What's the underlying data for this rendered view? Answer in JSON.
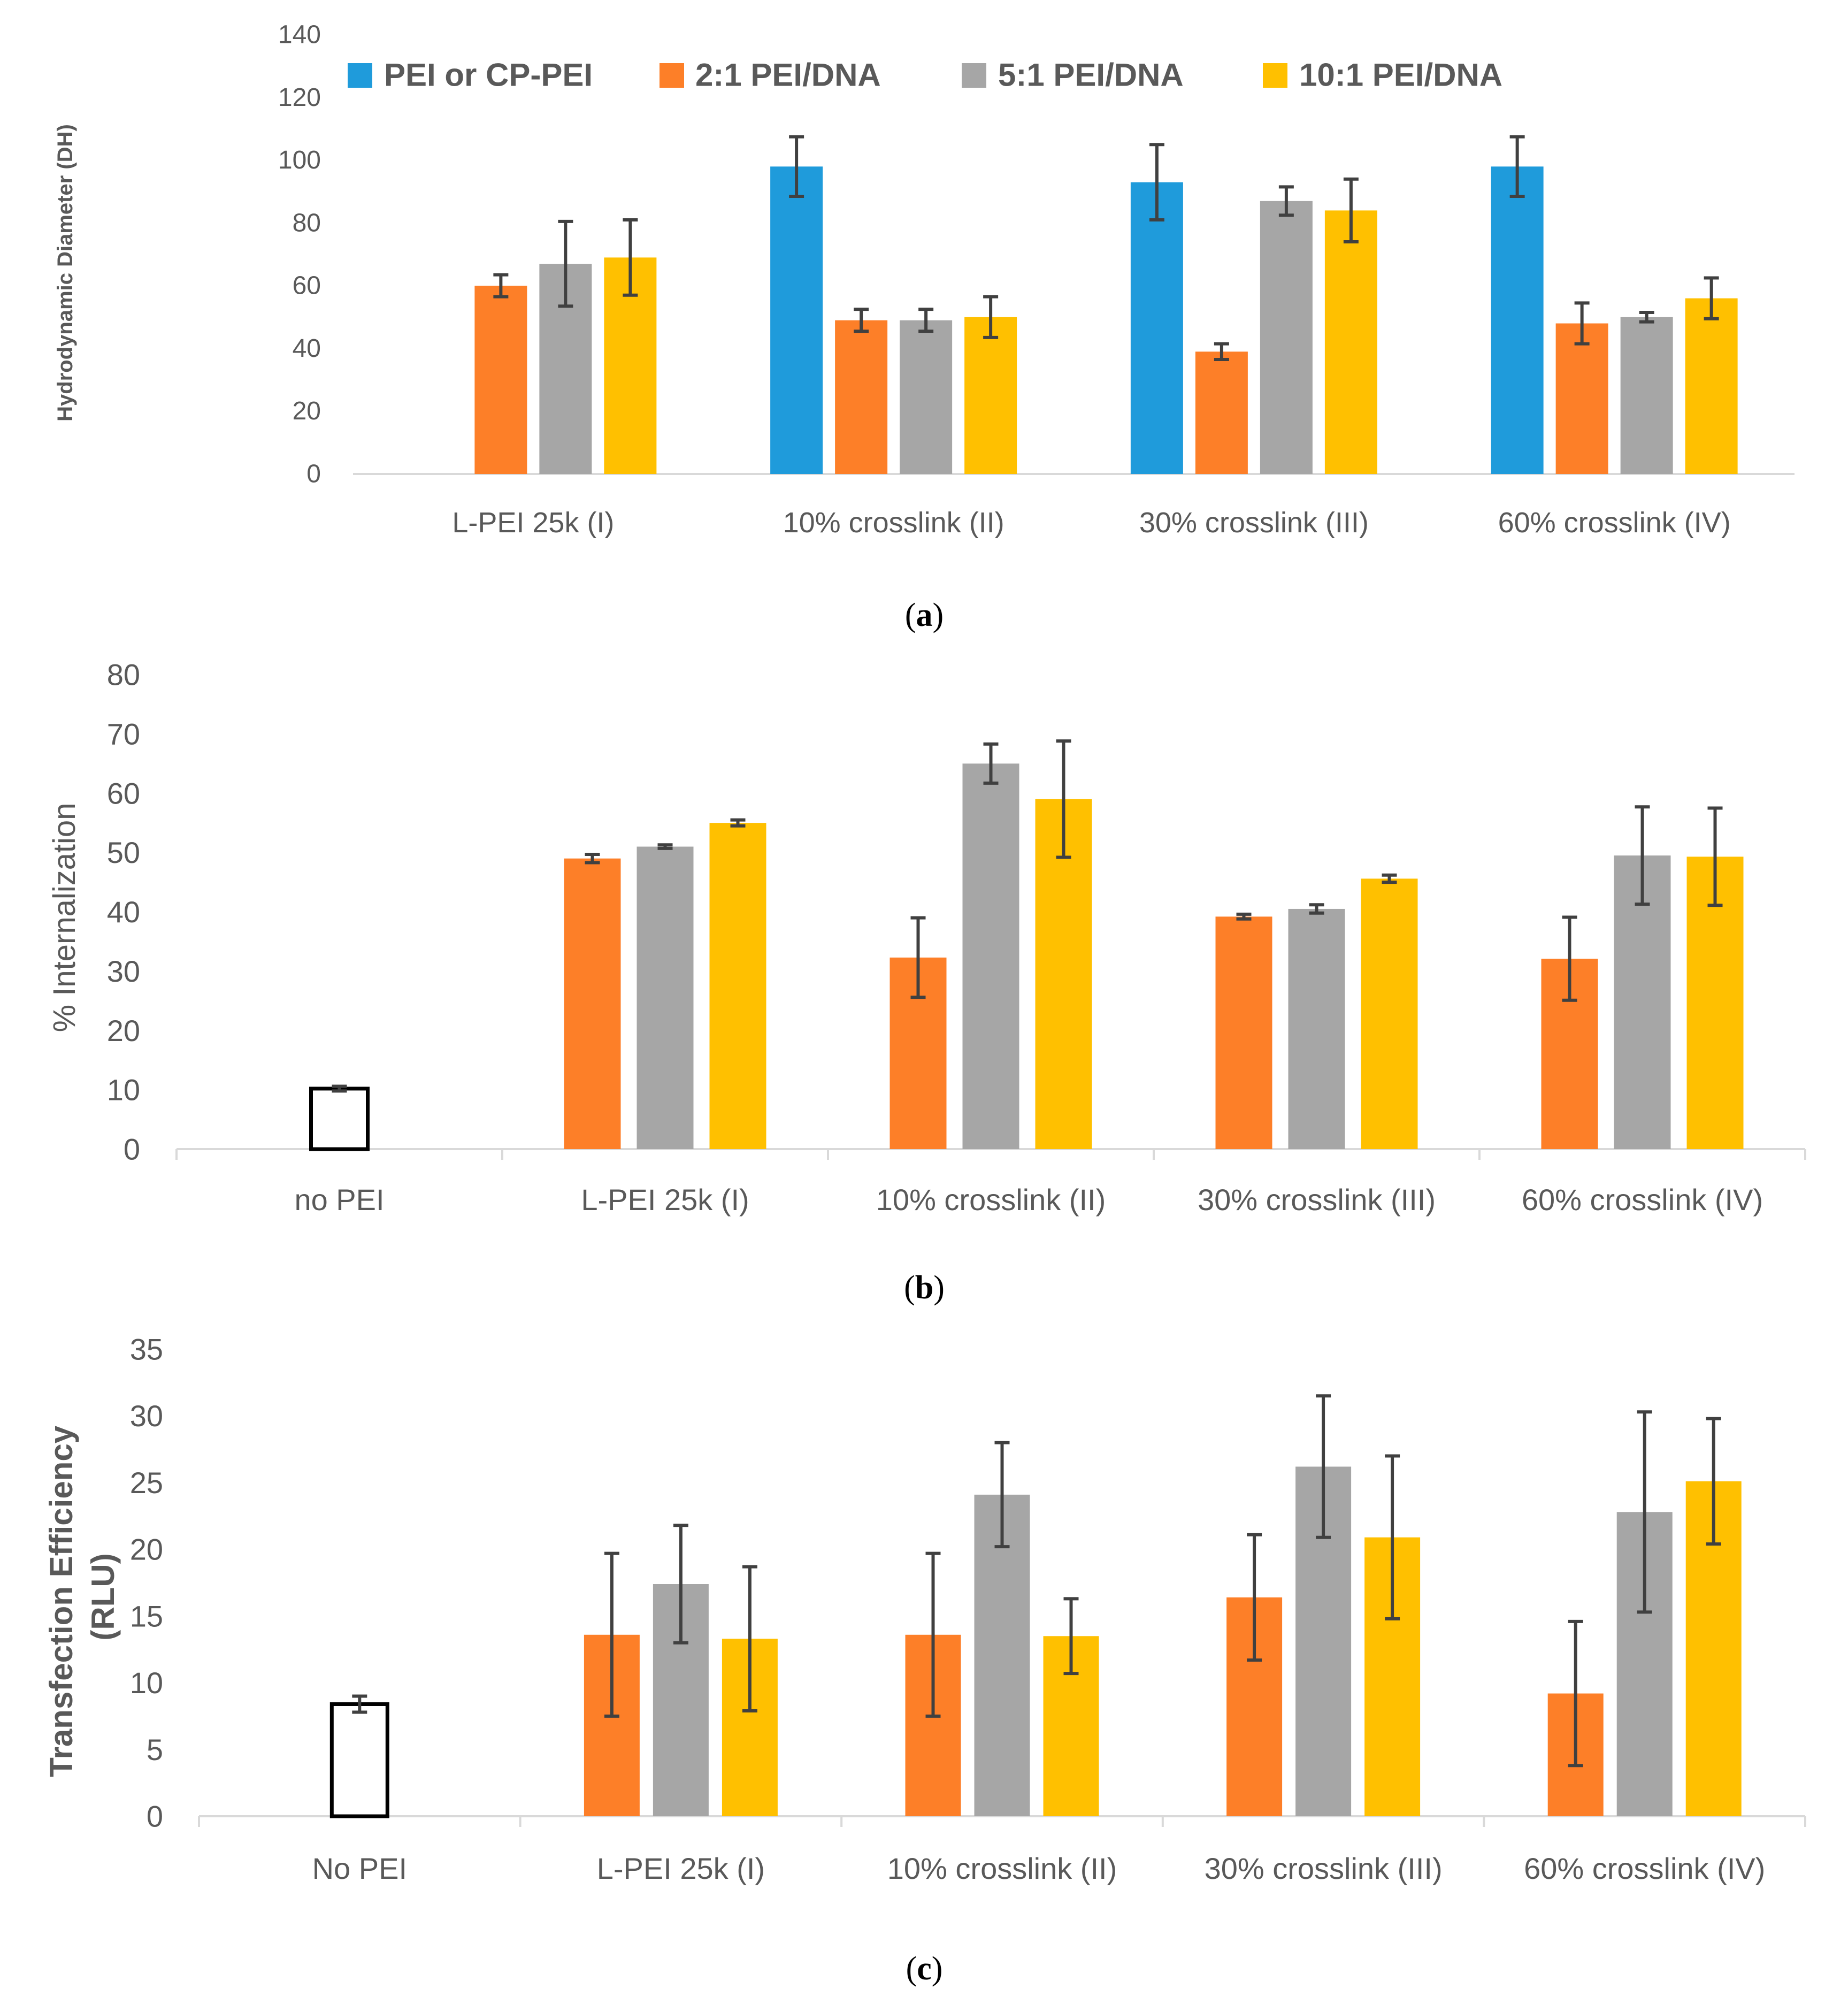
{
  "panels": [
    {
      "caption": "(a)",
      "caption_letter": "a",
      "chart_data": {
        "type": "bar",
        "title": "",
        "xlabel": "",
        "ylabel": "Hydrodynamic Diameter (DH)",
        "ylim": [
          0,
          140
        ],
        "yticks": [
          0,
          20,
          40,
          60,
          80,
          100,
          120,
          140
        ],
        "grid": false,
        "legend": "top",
        "categories": [
          "L-PEI 25k (I)",
          "10% crosslink (II)",
          "30% crosslink (III)",
          "60% crosslink (IV)"
        ],
        "series": [
          {
            "name": "PEI or CP-PEI",
            "color": "#1f9bdb",
            "values": [
              null,
              98,
              93,
              98
            ],
            "errors": [
              null,
              9.5,
              12,
              9.5
            ]
          },
          {
            "name": "2:1 PEI/DNA",
            "color": "#fd7f28",
            "values": [
              60,
              49,
              39,
              48
            ],
            "errors": [
              3.5,
              3.5,
              2.5,
              6.5
            ]
          },
          {
            "name": "5:1 PEI/DNA",
            "color": "#a6a6a6",
            "values": [
              67,
              49,
              87,
              50
            ],
            "errors": [
              13.5,
              3.5,
              4.5,
              1.5
            ]
          },
          {
            "name": "10:1 PEI/DNA",
            "color": "#ffc000",
            "values": [
              69,
              50,
              84,
              56
            ],
            "errors": [
              12,
              6.5,
              10,
              6.5
            ]
          }
        ]
      }
    },
    {
      "caption": "(b)",
      "caption_letter": "b",
      "chart_data": {
        "type": "bar",
        "title": "",
        "xlabel": "",
        "ylabel": "% Internalization",
        "ylim": [
          0,
          80
        ],
        "yticks": [
          0,
          10,
          20,
          30,
          40,
          50,
          60,
          70,
          80
        ],
        "grid": false,
        "legend": "none",
        "categories": [
          "no PEI",
          "L-PEI 25k (I)",
          "10% crosslink (II)",
          "30% crosslink (III)",
          "60% crosslink (IV)"
        ],
        "series": [
          {
            "name": "no PEI",
            "color": "#ffffff",
            "values": [
              10.2,
              null,
              null,
              null,
              null
            ],
            "errors": [
              0.4,
              null,
              null,
              null,
              null
            ]
          },
          {
            "name": "2:1 PEI/DNA",
            "color": "#fd7f28",
            "values": [
              null,
              49,
              32.3,
              39.2,
              32.1
            ],
            "errors": [
              null,
              0.7,
              6.7,
              0.4,
              7
            ]
          },
          {
            "name": "5:1 PEI/DNA",
            "color": "#a6a6a6",
            "values": [
              null,
              51,
              65,
              40.5,
              49.5
            ],
            "errors": [
              null,
              0.3,
              3.3,
              0.7,
              8.2
            ]
          },
          {
            "name": "10:1 PEI/DNA",
            "color": "#ffc000",
            "values": [
              null,
              55,
              59,
              45.6,
              49.3
            ],
            "errors": [
              null,
              0.5,
              9.8,
              0.6,
              8.2
            ]
          }
        ]
      }
    },
    {
      "caption": "(c)",
      "caption_letter": "c",
      "chart_data": {
        "type": "bar",
        "title": "",
        "xlabel": "",
        "ylabel": "Transfection Efficiency (RLU)",
        "ylabel_lines": [
          "Transfection Efficiency",
          "(RLU)"
        ],
        "ylim": [
          0,
          35
        ],
        "yticks": [
          0,
          5,
          10,
          15,
          20,
          25,
          30,
          35
        ],
        "grid": false,
        "legend": "none",
        "categories": [
          "No PEI",
          "L-PEI 25k (I)",
          "10% crosslink (II)",
          "30% crosslink (III)",
          "60% crosslink (IV)"
        ],
        "series": [
          {
            "name": "No PEI",
            "color": "#ffffff",
            "values": [
              8.4,
              null,
              null,
              null,
              null
            ],
            "errors": [
              0.6,
              null,
              null,
              null,
              null
            ]
          },
          {
            "name": "2:1 PEI/DNA",
            "color": "#fd7f28",
            "values": [
              null,
              13.6,
              13.6,
              16.4,
              9.2
            ],
            "errors": [
              null,
              6.1,
              6.1,
              4.7,
              5.4
            ]
          },
          {
            "name": "5:1 PEI/DNA",
            "color": "#a6a6a6",
            "values": [
              null,
              17.4,
              24.1,
              26.2,
              22.8
            ],
            "errors": [
              null,
              4.4,
              3.9,
              5.3,
              7.5
            ]
          },
          {
            "name": "10:1 PEI/DNA",
            "color": "#ffc000",
            "values": [
              null,
              13.3,
              13.5,
              20.9,
              25.1
            ],
            "errors": [
              null,
              5.4,
              2.8,
              6.1,
              4.7
            ]
          }
        ]
      }
    }
  ]
}
